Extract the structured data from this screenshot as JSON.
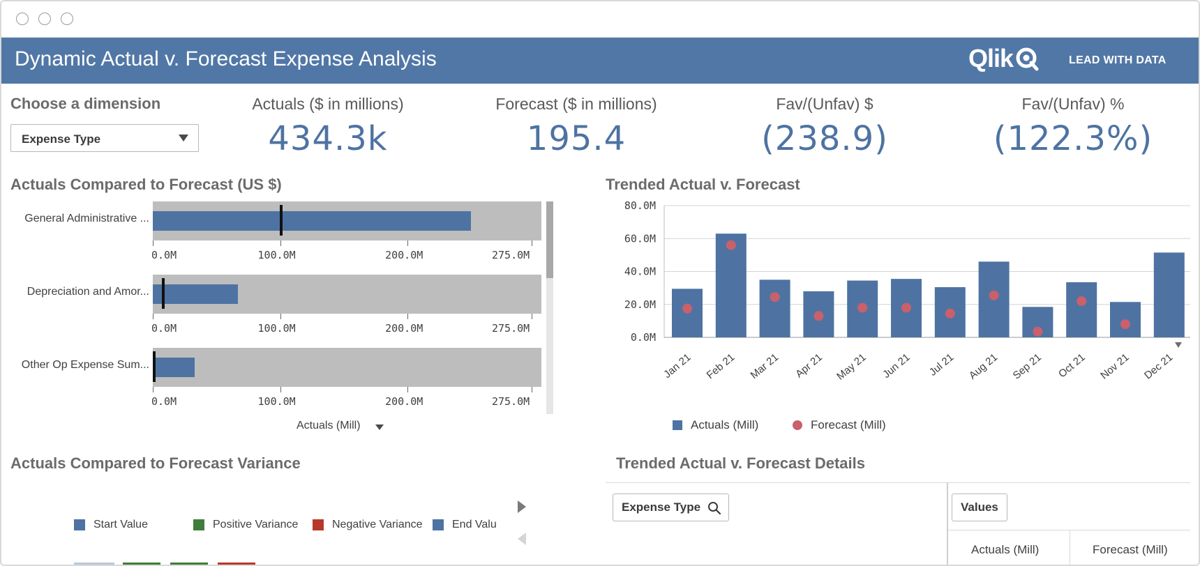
{
  "window": {
    "controls": [
      "close",
      "minimize",
      "maximize"
    ]
  },
  "header": {
    "title": "Dynamic Actual v. Forecast Expense Analysis",
    "logo_text": "Qlik",
    "tagline": "LEAD WITH DATA",
    "color": "#5177a6"
  },
  "dimension": {
    "title": "Choose a dimension",
    "selected": "Expense Type"
  },
  "kpis": [
    {
      "label": "Actuals ($ in millions)",
      "value": "434.3k"
    },
    {
      "label": "Forecast ($ in millions)",
      "value": "195.4"
    },
    {
      "label": "Fav/(Unfav) $",
      "value": "(238.9)"
    },
    {
      "label": "Fav/(Unfav) %",
      "value": "(122.3%)"
    }
  ],
  "bullet_chart": {
    "title": "Actuals Compared to Forecast (US $)",
    "axis_label": "Actuals (Mill)",
    "tick_labels": [
      "0.0M",
      "100.0M",
      "200.0M",
      "275.0M"
    ],
    "ticks": [
      0,
      100,
      200,
      275
    ],
    "max": 275,
    "rows": [
      {
        "label": "General Administrative ...",
        "actual": 250,
        "forecast": 101
      },
      {
        "label": "Depreciation and Amor...",
        "actual": 67,
        "forecast": 8
      },
      {
        "label": "Other Op Expense Sum...",
        "actual": 33,
        "forecast": 1
      }
    ]
  },
  "combo_chart": {
    "title": "Trended Actual v. Forecast",
    "legend": [
      {
        "name": "Actuals (Mill)",
        "color": "#4e73a2"
      },
      {
        "name": "Forecast (Mill)",
        "color": "#c9606b"
      }
    ]
  },
  "chart_data": {
    "type": "bar",
    "title": "Trended Actual v. Forecast",
    "categories": [
      "Jan 21",
      "Feb 21",
      "Mar 21",
      "Apr 21",
      "May 21",
      "Jun 21",
      "Jul 21",
      "Aug 21",
      "Sep 21",
      "Oct 21",
      "Nov 21",
      "Dec 21"
    ],
    "series": [
      {
        "name": "Actuals (Mill)",
        "type": "bar",
        "values": [
          29.5,
          63,
          35,
          28,
          34.5,
          35.5,
          30.5,
          46,
          18.5,
          33.5,
          21.5,
          51.5
        ]
      },
      {
        "name": "Forecast (Mill)",
        "type": "scatter",
        "values": [
          17.5,
          56,
          24.5,
          13,
          18,
          18,
          14.5,
          25.5,
          3.5,
          22,
          8,
          null
        ]
      }
    ],
    "y_ticks": [
      "0.0M",
      "20.0M",
      "40.0M",
      "60.0M",
      "80.0M"
    ],
    "ylim": [
      0,
      80
    ],
    "grid": true,
    "legend_position": "bottom"
  },
  "waterfall": {
    "title": "Actuals Compared to Forecast Variance",
    "legend": [
      {
        "name": "Start Value",
        "color": "#4e73a2"
      },
      {
        "name": "Positive Variance",
        "color": "#3f7d3a"
      },
      {
        "name": "Negative Variance",
        "color": "#b7372a"
      },
      {
        "name": "End Valu",
        "color": "#4e73a2"
      }
    ]
  },
  "details_table": {
    "title": "Trended Actual v. Forecast Details",
    "filter_label": "Expense Type",
    "values_label": "Values",
    "columns": [
      "Actuals (Mill)",
      "Forecast (Mill)"
    ]
  }
}
